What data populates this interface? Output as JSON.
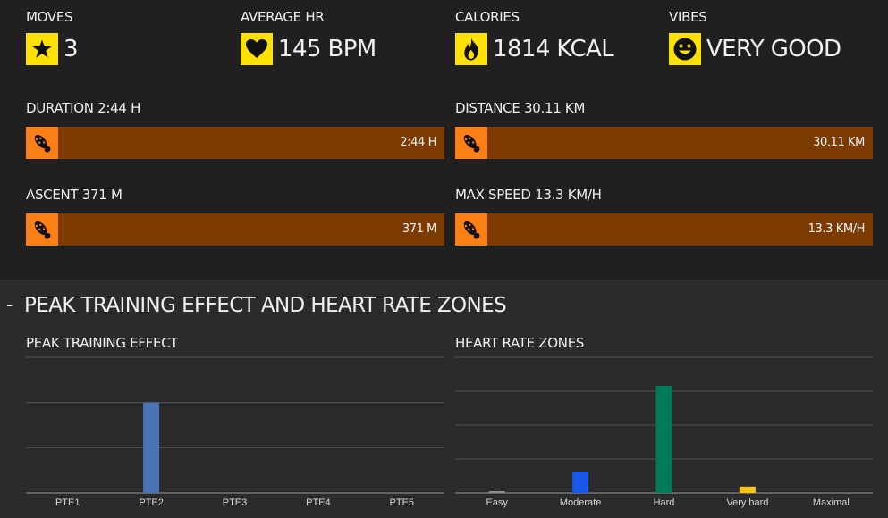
{
  "stats": [
    {
      "label": "MOVES",
      "value": "3",
      "icon": "star-icon"
    },
    {
      "label": "AVERAGE HR",
      "value": "145 BPM",
      "icon": "heart-icon"
    },
    {
      "label": "CALORIES",
      "value": "1814 KCAL",
      "icon": "flame-icon"
    },
    {
      "label": "VIBES",
      "value": "VERY GOOD",
      "icon": "smiley-icon"
    }
  ],
  "bars": [
    {
      "label": "DURATION 2:44 H",
      "value": "2:44 H",
      "icon": "shoe-print-icon"
    },
    {
      "label": "DISTANCE 30.11 KM",
      "value": "30.11 KM",
      "icon": "shoe-print-icon"
    },
    {
      "label": "ASCENT 371 M",
      "value": "371 M",
      "icon": "shoe-print-icon"
    },
    {
      "label": "MAX SPEED 13.3 KM/H",
      "value": "13.3 KM/H",
      "icon": "shoe-print-icon"
    }
  ],
  "section": {
    "toggle": "-",
    "title": "PEAK TRAINING EFFECT AND HEART RATE ZONES"
  },
  "colors": {
    "accent_yellow": "#ffe100",
    "accent_orange": "#ff7f17",
    "bar_fill": "#7a3a00"
  },
  "chart_data": [
    {
      "type": "bar",
      "title": "PEAK TRAINING EFFECT",
      "categories": [
        "PTE1",
        "PTE2",
        "PTE3",
        "PTE4",
        "PTE5"
      ],
      "values": [
        0,
        2.0,
        0,
        0,
        0
      ],
      "ylim": [
        0,
        3
      ],
      "grid": true,
      "colors": [
        "#4a73b8",
        "#4a73b8",
        "#4a73b8",
        "#4a73b8",
        "#4a73b8"
      ]
    },
    {
      "type": "bar",
      "title": "HEART RATE ZONES",
      "categories": [
        "Easy",
        "Moderate",
        "Hard",
        "Very hard",
        "Maximal"
      ],
      "values": [
        0.05,
        0.6,
        3.0,
        0.18,
        0
      ],
      "ylim": [
        0,
        3.8
      ],
      "grid": true,
      "colors": [
        "#8c8c8c",
        "#1a56e8",
        "#007a5a",
        "#f5c419",
        "#cc2222"
      ]
    }
  ]
}
